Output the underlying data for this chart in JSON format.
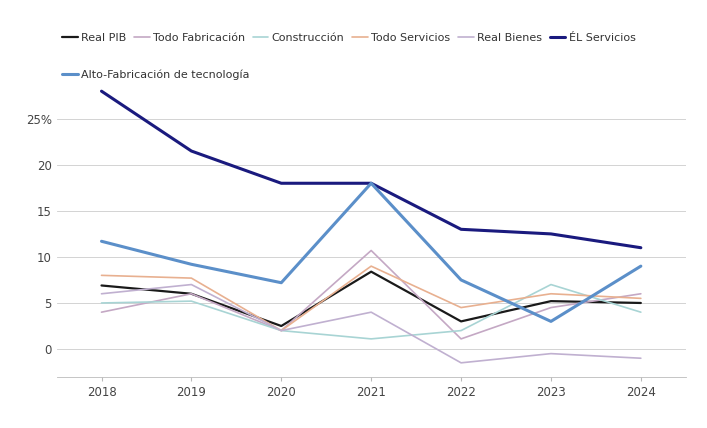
{
  "years": [
    2018,
    2019,
    2020,
    2021,
    2022,
    2023,
    2024
  ],
  "series": [
    {
      "label": "Real PIB",
      "color": "#1a1a1a",
      "linewidth": 1.6,
      "values": [
        6.9,
        6.0,
        2.5,
        8.4,
        3.0,
        5.2,
        5.0
      ]
    },
    {
      "label": "Todo Fabricación",
      "color": "#c4a8c4",
      "linewidth": 1.2,
      "values": [
        4.0,
        6.0,
        2.0,
        10.7,
        1.1,
        4.5,
        6.0
      ]
    },
    {
      "label": "Construcción",
      "color": "#a8d4d4",
      "linewidth": 1.2,
      "values": [
        5.0,
        5.2,
        2.0,
        1.1,
        2.0,
        7.0,
        4.0
      ]
    },
    {
      "label": "Todo Servicios",
      "color": "#e8b090",
      "linewidth": 1.2,
      "values": [
        8.0,
        7.7,
        2.0,
        9.0,
        4.5,
        6.0,
        5.5
      ]
    },
    {
      "label": "Real Bienes",
      "color": "#c0b0d0",
      "linewidth": 1.2,
      "values": [
        6.0,
        7.0,
        2.0,
        4.0,
        -1.5,
        -0.5,
        -1.0
      ]
    },
    {
      "label": "ÉL Servicios",
      "color": "#1a1a7e",
      "linewidth": 2.2,
      "values": [
        28.0,
        21.5,
        18.0,
        18.0,
        13.0,
        12.5,
        11.0
      ]
    },
    {
      "label": "Alto-Fabricación de tecnología",
      "color": "#5b8fc9",
      "linewidth": 2.2,
      "values": [
        11.7,
        9.2,
        7.2,
        18.0,
        7.5,
        3.0,
        9.0
      ]
    }
  ],
  "ylim": [
    -3,
    30
  ],
  "yticks": [
    0,
    5,
    10,
    15,
    20,
    25
  ],
  "ytick_pct": 25,
  "background_color": "#ffffff",
  "grid_color": "#cccccc",
  "legend_fontsize": 8.0,
  "tick_fontsize": 8.5,
  "legend_row1_count": 6,
  "spine_color": "#bbbbbb"
}
